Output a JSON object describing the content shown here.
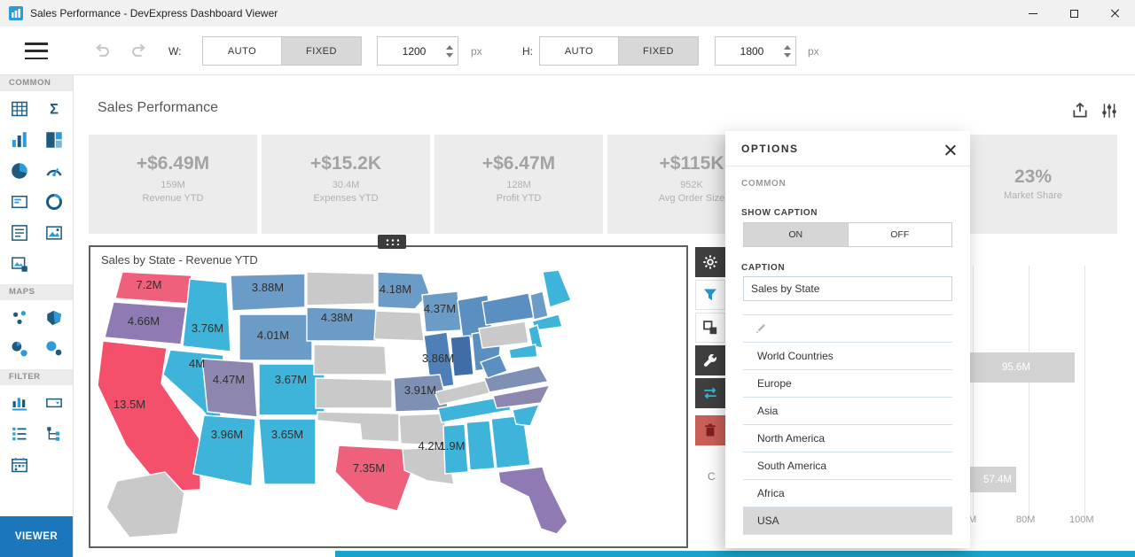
{
  "window": {
    "title": "Sales Performance - DevExpress Dashboard Viewer"
  },
  "toolbar": {
    "width": {
      "label": "W:",
      "auto": "AUTO",
      "fixed": "FIXED",
      "value": "1200",
      "unit": "px",
      "selected": "FIXED"
    },
    "height": {
      "label": "H:",
      "auto": "AUTO",
      "fixed": "FIXED",
      "value": "1800",
      "unit": "px",
      "selected": "FIXED"
    }
  },
  "sidebar": {
    "sections": [
      {
        "label": "COMMON",
        "icons": [
          "grid",
          "sum",
          "bar-chart",
          "treemap",
          "pie-chart",
          "gauge",
          "card",
          "donut",
          "text-box",
          "image",
          "bound-image"
        ]
      },
      {
        "label": "MAPS",
        "icons": [
          "geo-point-map",
          "choropleth-map",
          "pie-map",
          "bubble-map"
        ]
      },
      {
        "label": "FILTER",
        "icons": [
          "range-filter",
          "combo-box",
          "list-box",
          "tree-view",
          "date-filter"
        ]
      }
    ],
    "viewer_button": "VIEWER"
  },
  "main": {
    "title": "Sales Performance",
    "kpi_cards": [
      {
        "value": "+$6.49M",
        "sub": "159M",
        "label": "Revenue YTD"
      },
      {
        "value": "+$15.2K",
        "sub": "30.4M",
        "label": "Expenses YTD"
      },
      {
        "value": "+$6.47M",
        "sub": "128M",
        "label": "Profit YTD"
      },
      {
        "value": "+$115K",
        "sub": "952K",
        "label": "Avg Order Size"
      },
      {
        "value": "23%",
        "sub": null,
        "label": "Market Share"
      }
    ]
  },
  "map_panel": {
    "caption": "Sales by State - Revenue YTD",
    "regions": [
      {
        "id": "WA",
        "value": "7.2M",
        "color": "#ee607b"
      },
      {
        "id": "OR",
        "value": "4.66M",
        "color": "#8f7ab3"
      },
      {
        "id": "CA",
        "value": "13.5M",
        "color": "#f4506c"
      },
      {
        "id": "ID",
        "value": "3.76M",
        "color": "#3fb4da"
      },
      {
        "id": "NV",
        "value": "4M",
        "color": "#3fb4da"
      },
      {
        "id": "MT",
        "value": "3.88M",
        "color": "#6b9cc8"
      },
      {
        "id": "WY",
        "value": "4.01M",
        "color": "#6b9cc8"
      },
      {
        "id": "UT",
        "value": "4.47M",
        "color": "#8d87b0"
      },
      {
        "id": "CO",
        "value": "3.67M",
        "color": "#3fb4da"
      },
      {
        "id": "AZ",
        "value": "3.96M",
        "color": "#3fb4da"
      },
      {
        "id": "NM",
        "value": "3.65M",
        "color": "#3fb4da"
      },
      {
        "id": "ND",
        "value": null,
        "color": "#c9c9c9"
      },
      {
        "id": "SD",
        "value": "4.38M",
        "color": "#6b9cc8"
      },
      {
        "id": "NE",
        "value": null,
        "color": "#c9c9c9"
      },
      {
        "id": "KS",
        "value": null,
        "color": "#c9c9c9"
      },
      {
        "id": "OK",
        "value": null,
        "color": "#c9c9c9"
      },
      {
        "id": "TX",
        "value": "7.35M",
        "color": "#ee607b"
      },
      {
        "id": "MN",
        "value": "4.18M",
        "color": "#6b9cc8"
      },
      {
        "id": "IA",
        "value": null,
        "color": "#c9c9c9"
      },
      {
        "id": "WI",
        "value": "4.37M",
        "color": "#6b9cc8"
      },
      {
        "id": "IL",
        "value": "3.86M",
        "color": "#4e7fb7"
      },
      {
        "id": "MO",
        "value": "3.91M",
        "color": "#7e90b3"
      },
      {
        "id": "AR",
        "value": null,
        "color": "#c9c9c9"
      },
      {
        "id": "LA",
        "value": null,
        "color": "#c9c9c9"
      },
      {
        "id": "MI",
        "value": null,
        "color": "#5b8fc2"
      },
      {
        "id": "IN",
        "value": null,
        "color": "#3f6ea6"
      },
      {
        "id": "OH",
        "value": null,
        "color": "#5b8fc2"
      },
      {
        "id": "KY",
        "value": null,
        "color": "#c9c9c9"
      },
      {
        "id": "TN",
        "value": null,
        "color": "#3fb4da"
      },
      {
        "id": "MS",
        "value": "4.2M",
        "color": "#3fb4da"
      },
      {
        "id": "AL",
        "value": "1.9M",
        "color": "#3fb4da"
      },
      {
        "id": "GA",
        "value": null,
        "color": "#3fb4da"
      },
      {
        "id": "FL",
        "value": null,
        "color": "#8f7ab3"
      },
      {
        "id": "SC",
        "value": null,
        "color": "#3fb4da"
      },
      {
        "id": "NC",
        "value": null,
        "color": "#8d87b0"
      },
      {
        "id": "VA",
        "value": null,
        "color": "#7e90b3"
      },
      {
        "id": "WV",
        "value": null,
        "color": "#5b8fc2"
      },
      {
        "id": "PA",
        "value": null,
        "color": "#c9c9c9"
      },
      {
        "id": "NY",
        "value": null,
        "color": "#5b8fc2"
      },
      {
        "id": "ME",
        "value": null,
        "color": "#3fb4da"
      },
      {
        "id": "NH",
        "value": null,
        "color": "#6b9cc8"
      },
      {
        "id": "MA",
        "value": null,
        "color": "#3fb4da"
      },
      {
        "id": "NJ",
        "value": null,
        "color": "#3fb4da"
      },
      {
        "id": "MD",
        "value": null,
        "color": "#3fb4da"
      },
      {
        "id": "AK",
        "value": null,
        "color": "#c9c9c9"
      }
    ]
  },
  "side_toolbar": {
    "buttons": [
      "gear",
      "filter",
      "convert",
      "wrench",
      "swap",
      "delete"
    ]
  },
  "options_panel": {
    "title": "OPTIONS",
    "section_label": "COMMON",
    "show_caption_label": "SHOW CAPTION",
    "toggle_on": "ON",
    "toggle_off": "OFF",
    "toggle_selected": "ON",
    "caption_label": "CAPTION",
    "caption_value": "Sales by State",
    "list": [
      "World Countries",
      "Europe",
      "Asia",
      "North America",
      "South America",
      "Africa",
      "USA"
    ],
    "selected_item": "USA"
  },
  "background_chart": {
    "bar_labels": [
      "95.6M",
      "57.4M"
    ],
    "axis_ticks": [
      "M",
      "80M",
      "100M"
    ],
    "partial_text": "C"
  },
  "colors": {
    "accent_blue": "#1b76bb",
    "teal_strip": "#18a3c8"
  }
}
